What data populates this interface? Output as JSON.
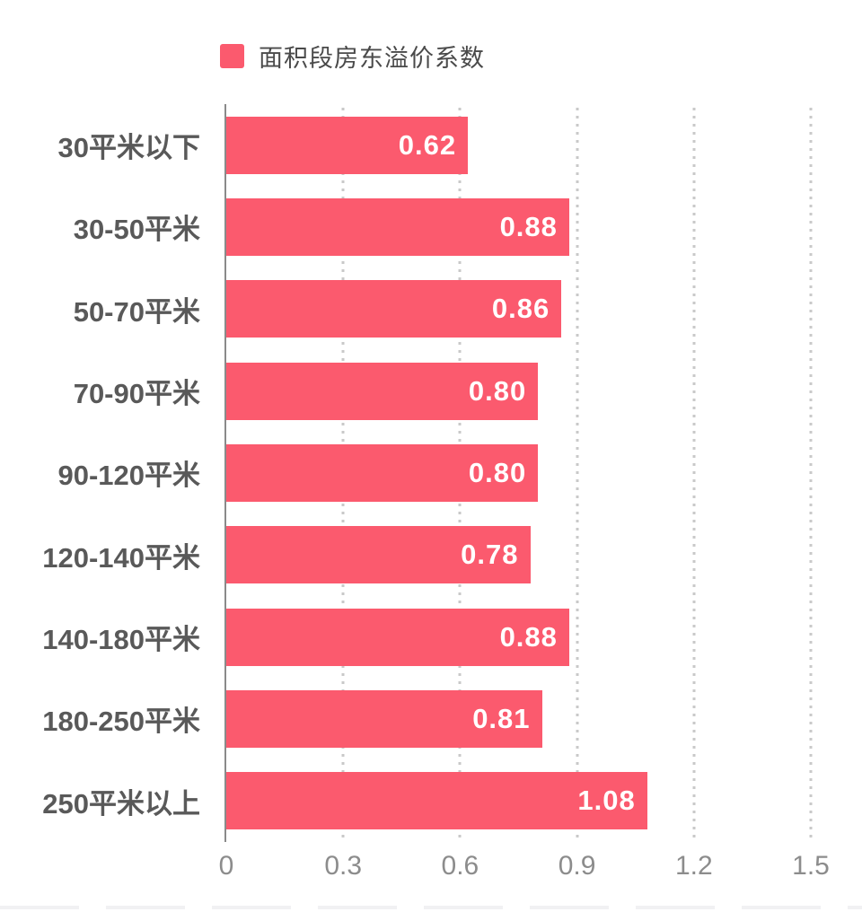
{
  "legend": {
    "series_label": "面积段房东溢价系数"
  },
  "colors": {
    "bar": "#FB5A6E",
    "value_label": "#FFFFFF",
    "axis_line": "#8A8A8A",
    "grid_dot": "#C9C9C9",
    "category_label": "#595959",
    "tick_label": "#8C8C8C",
    "legend_label": "#4A4A4A"
  },
  "chart_data": {
    "type": "bar",
    "orientation": "horizontal",
    "title": "",
    "series_name": "面积段房东溢价系数",
    "categories": [
      "30平米以下",
      "30-50平米",
      "50-70平米",
      "70-90平米",
      "90-120平米",
      "120-140平米",
      "140-180平米",
      "180-250平米",
      "250平米以上"
    ],
    "values": [
      0.62,
      0.88,
      0.86,
      0.8,
      0.8,
      0.78,
      0.88,
      0.81,
      1.08
    ],
    "value_labels": [
      "0.62",
      "0.88",
      "0.86",
      "0.80",
      "0.80",
      "0.78",
      "0.88",
      "0.81",
      "1.08"
    ],
    "xlabel": "",
    "ylabel": "",
    "xlim": [
      0,
      1.5
    ],
    "x_tick_values": [
      0,
      0.3,
      0.6,
      0.9,
      1.2,
      1.5
    ],
    "x_tick_labels": [
      "0",
      "0.3",
      "0.6",
      "0.9",
      "1.2",
      "1.5"
    ],
    "grid": "vertical-dotted",
    "legend_position": "top-left"
  }
}
